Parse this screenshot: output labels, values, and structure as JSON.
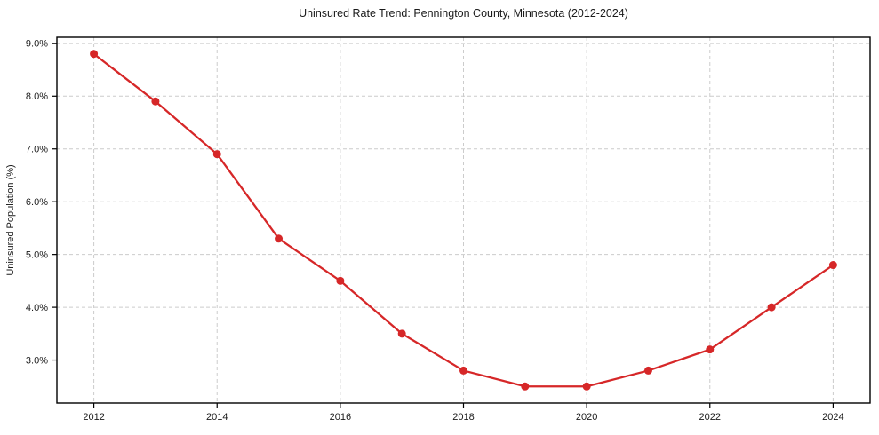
{
  "chart_data": {
    "type": "line",
    "title": "Uninsured Rate Trend: Pennington County, Minnesota (2012-2024)",
    "xlabel": "",
    "ylabel": "Uninsured Population (%)",
    "series": [
      {
        "name": "Uninsured rate",
        "x": [
          2012,
          2013,
          2014,
          2015,
          2016,
          2017,
          2018,
          2019,
          2020,
          2021,
          2022,
          2023,
          2024
        ],
        "values": [
          8.8,
          7.9,
          6.9,
          5.3,
          4.5,
          3.5,
          2.8,
          2.5,
          2.5,
          2.8,
          3.2,
          4.0,
          4.8
        ]
      }
    ],
    "xlim": [
      2011.4,
      2024.6
    ],
    "ylim": [
      2.185,
      9.115
    ],
    "x_ticks": [
      2012,
      2014,
      2016,
      2018,
      2020,
      2022,
      2024
    ],
    "x_tick_labels": [
      "2012",
      "2014",
      "2016",
      "2018",
      "2020",
      "2022",
      "2024"
    ],
    "y_ticks": [
      3,
      4,
      5,
      6,
      7,
      8,
      9
    ],
    "y_tick_labels": [
      "3.0%",
      "4.0%",
      "5.0%",
      "6.0%",
      "7.0%",
      "8.0%",
      "9.0%"
    ],
    "grid": true,
    "grid_style": "dashed",
    "legend": false,
    "marker": "circle",
    "line_color": "#d62728",
    "grid_color": "#cccccc",
    "frame_color": "#000000",
    "text_color": "#1a1a1a",
    "background": "#ffffff"
  }
}
